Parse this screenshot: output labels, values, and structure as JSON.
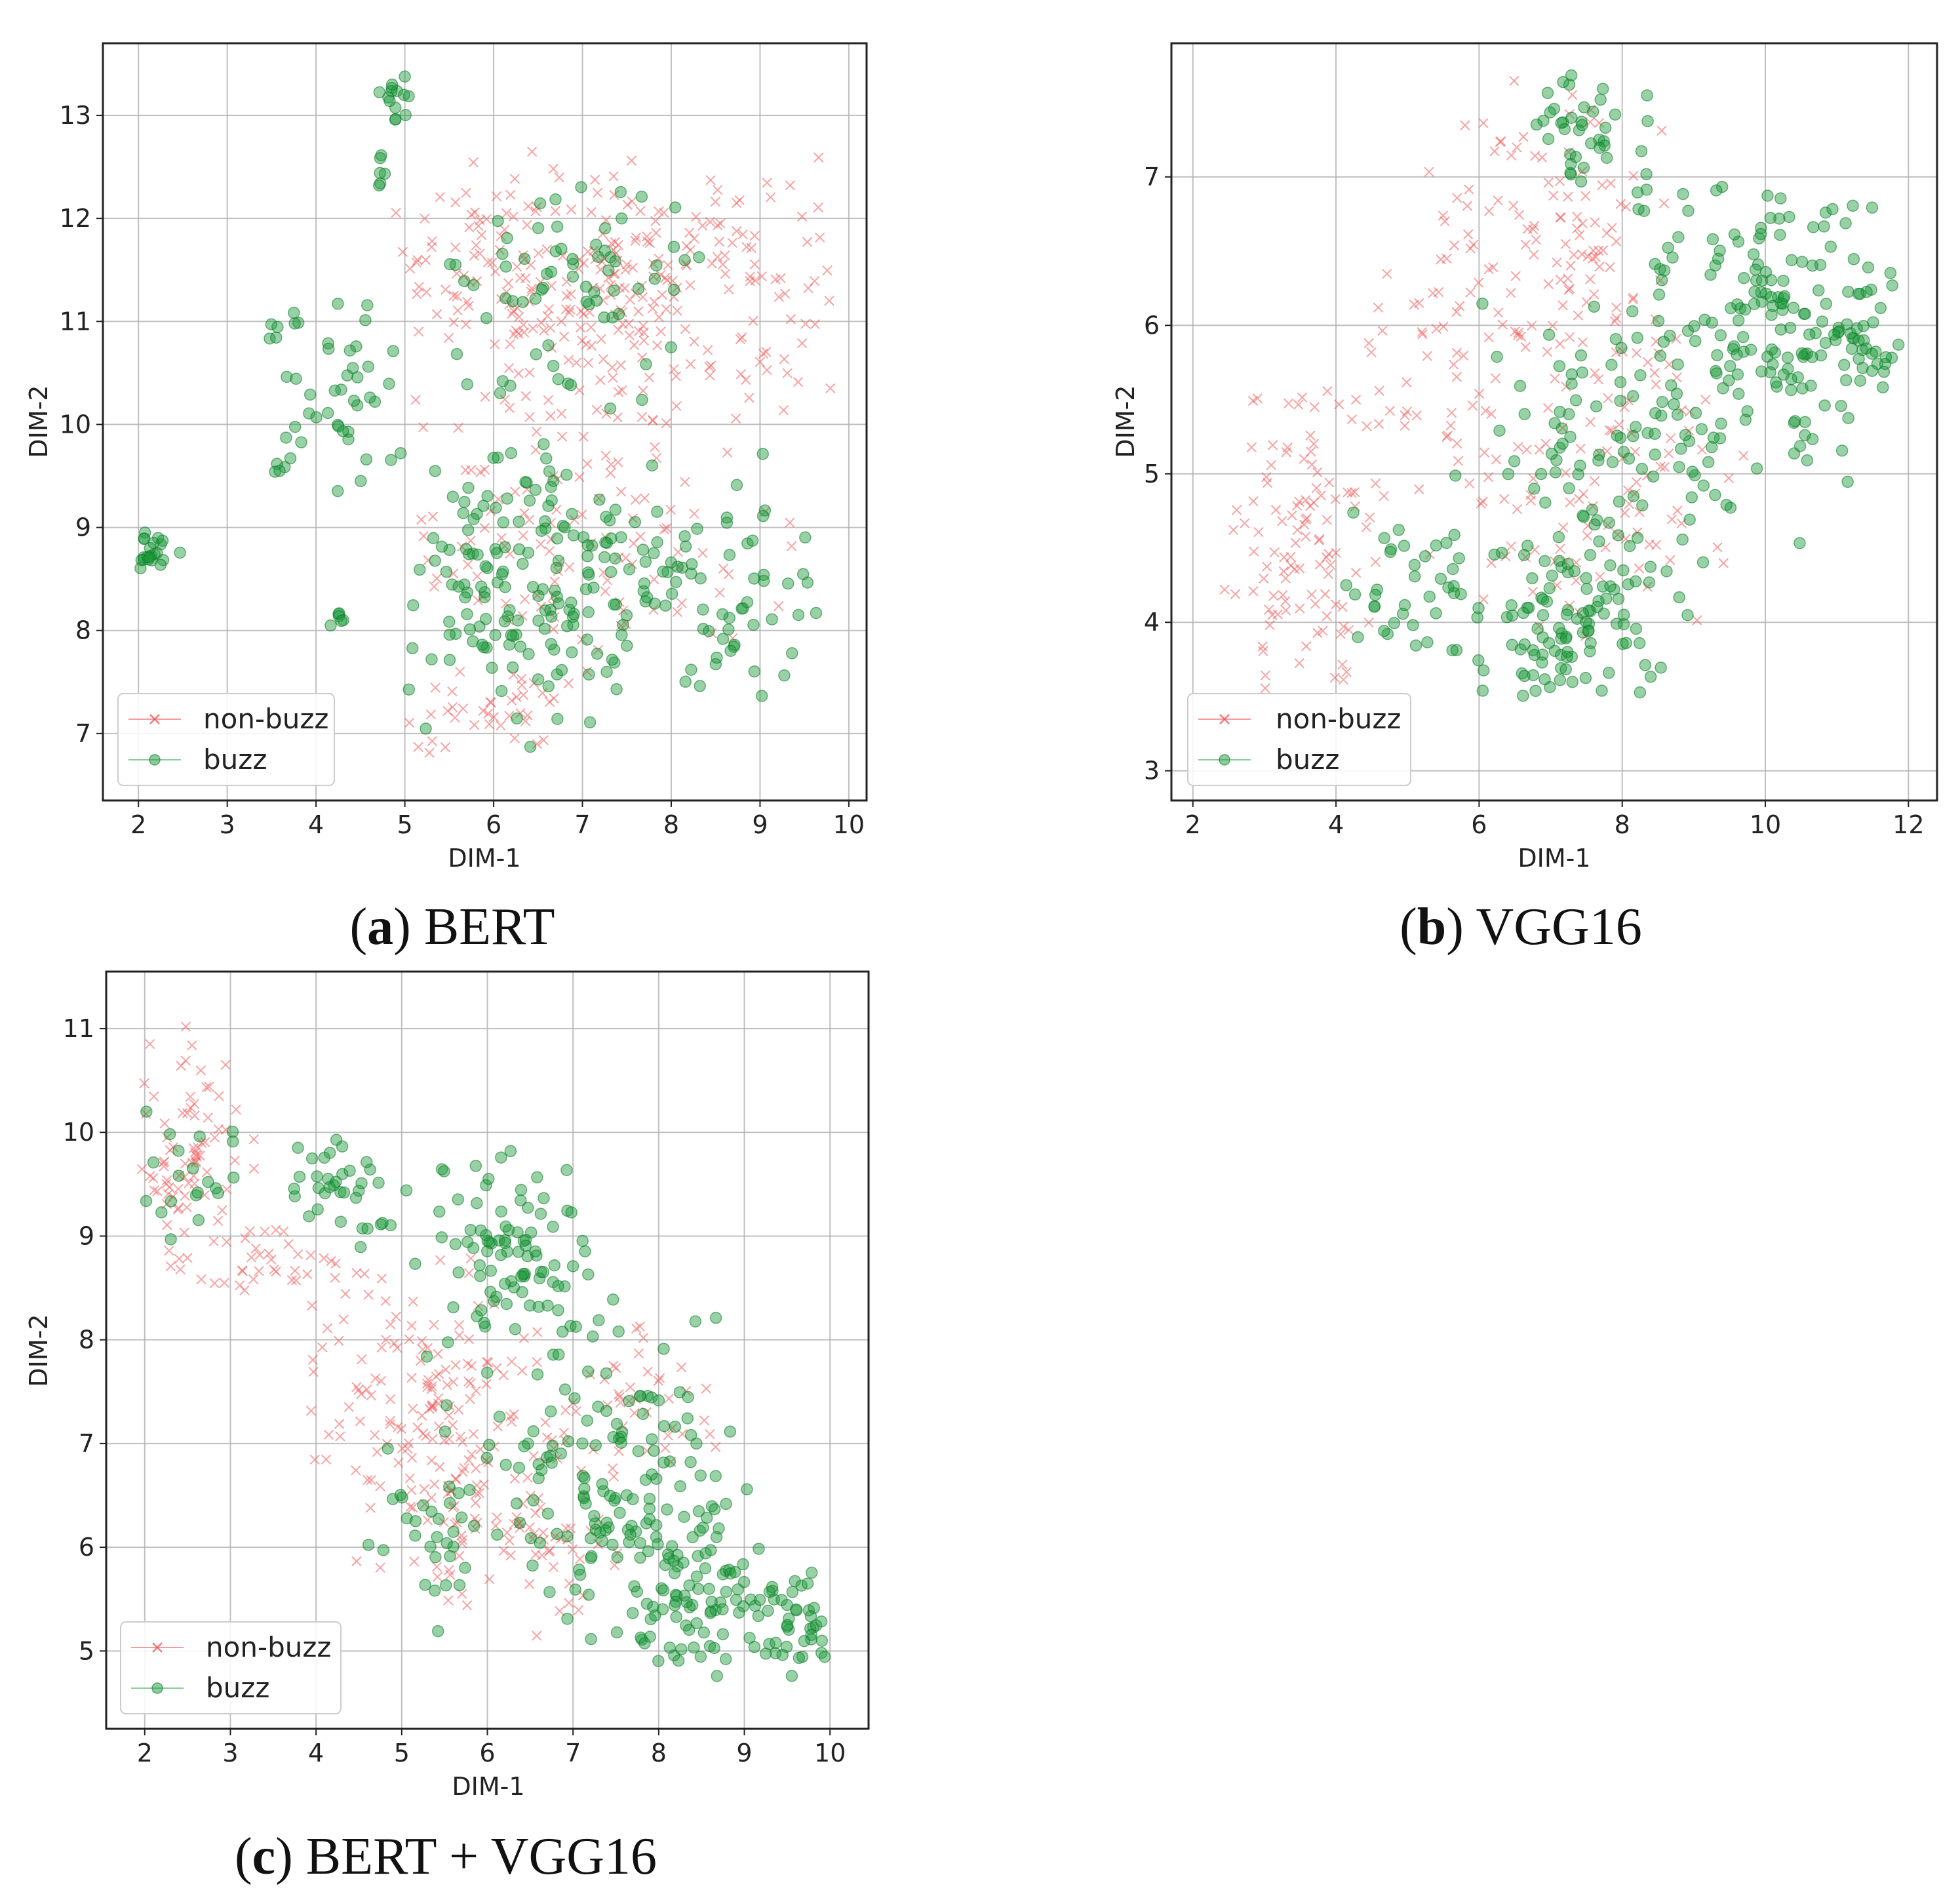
{
  "figure": {
    "colors": {
      "non_buzz": "#f25a5a",
      "buzz": "#1a9a3a",
      "grid": "#b0b0b0",
      "axes": "#222222"
    }
  },
  "chart_data": [
    {
      "id": "a",
      "type": "scatter",
      "caption": {
        "letter": "a",
        "text": "BERT"
      },
      "xlabel": "DIM-1",
      "ylabel": "DIM-2",
      "xlim": [
        1.6,
        10.2
      ],
      "ylim": [
        6.35,
        13.7
      ],
      "xticks": [
        "2",
        "3",
        "4",
        "5",
        "6",
        "7",
        "8",
        "9",
        "10"
      ],
      "yticks": [
        "7",
        "8",
        "9",
        "10",
        "11",
        "12",
        "13"
      ],
      "legend": {
        "position": "lower-left",
        "entries": [
          "non-buzz",
          "buzz"
        ]
      },
      "series": [
        {
          "name": "non-buzz",
          "marker": "x",
          "clusters": [
            {
              "cx": 7.6,
              "cy": 11.3,
              "sx": 1.2,
              "sy": 0.6,
              "n": 260,
              "xr": [
                5.1,
                9.8
              ],
              "yr": [
                10.0,
                12.6
              ]
            },
            {
              "cx": 7.0,
              "cy": 9.0,
              "sx": 1.1,
              "sy": 0.8,
              "n": 120,
              "xr": [
                5.0,
                9.5
              ],
              "yr": [
                7.8,
                10.3
              ]
            },
            {
              "cx": 5.9,
              "cy": 7.2,
              "sx": 0.6,
              "sy": 0.3,
              "n": 40,
              "xr": [
                5.0,
                7.4
              ],
              "yr": [
                6.7,
                7.8
              ]
            },
            {
              "cx": 5.8,
              "cy": 11.8,
              "sx": 0.5,
              "sy": 0.5,
              "n": 40,
              "xr": [
                4.9,
                6.8
              ],
              "yr": [
                11.0,
                12.8
              ]
            }
          ]
        },
        {
          "name": "buzz",
          "marker": "o",
          "clusters": [
            {
              "cx": 6.3,
              "cy": 8.6,
              "sx": 0.9,
              "sy": 0.7,
              "n": 160,
              "xr": [
                5.0,
                8.6
              ],
              "yr": [
                6.7,
                10.0
              ]
            },
            {
              "cx": 8.4,
              "cy": 8.3,
              "sx": 0.7,
              "sy": 0.6,
              "n": 70,
              "xr": [
                7.3,
                9.7
              ],
              "yr": [
                7.2,
                9.8
              ]
            },
            {
              "cx": 6.8,
              "cy": 11.2,
              "sx": 0.8,
              "sy": 0.6,
              "n": 70,
              "xr": [
                5.5,
                8.6
              ],
              "yr": [
                10.1,
                12.4
              ]
            },
            {
              "cx": 4.3,
              "cy": 10.2,
              "sx": 0.35,
              "sy": 0.6,
              "n": 40,
              "xr": [
                3.6,
                5.0
              ],
              "yr": [
                9.2,
                11.5
              ]
            },
            {
              "cx": 2.15,
              "cy": 8.75,
              "sx": 0.12,
              "sy": 0.1,
              "n": 22,
              "xr": [
                2.0,
                2.6
              ],
              "yr": [
                8.6,
                9.0
              ]
            },
            {
              "cx": 4.9,
              "cy": 13.2,
              "sx": 0.1,
              "sy": 0.15,
              "n": 14,
              "xr": [
                4.7,
                5.3
              ],
              "yr": [
                12.9,
                13.4
              ]
            },
            {
              "cx": 4.7,
              "cy": 12.4,
              "sx": 0.1,
              "sy": 0.15,
              "n": 6,
              "xr": [
                4.5,
                4.9
              ],
              "yr": [
                12.2,
                12.7
              ]
            },
            {
              "cx": 4.25,
              "cy": 8.1,
              "sx": 0.06,
              "sy": 0.06,
              "n": 6,
              "xr": [
                4.1,
                4.4
              ],
              "yr": [
                8.0,
                8.2
              ]
            },
            {
              "cx": 3.6,
              "cy": 9.55,
              "sx": 0.05,
              "sy": 0.05,
              "n": 4,
              "xr": [
                3.5,
                3.7
              ],
              "yr": [
                9.4,
                9.7
              ]
            },
            {
              "cx": 3.6,
              "cy": 10.9,
              "sx": 0.1,
              "sy": 0.1,
              "n": 6,
              "xr": [
                3.4,
                3.9
              ],
              "yr": [
                10.7,
                11.1
              ]
            }
          ]
        }
      ]
    },
    {
      "id": "b",
      "type": "scatter",
      "caption": {
        "letter": "b",
        "text": "VGG16"
      },
      "xlabel": "DIM-1",
      "ylabel": "DIM-2",
      "xlim": [
        1.7,
        12.4
      ],
      "ylim": [
        2.8,
        7.9
      ],
      "xticks": [
        "2",
        "4",
        "6",
        "8",
        "10",
        "12"
      ],
      "yticks": [
        "3",
        "4",
        "5",
        "6",
        "7"
      ],
      "legend": {
        "position": "lower-left",
        "entries": [
          "non-buzz",
          "buzz"
        ]
      },
      "series": [
        {
          "name": "non-buzz",
          "marker": "x",
          "clusters": [
            {
              "cx": 3.5,
              "cy": 4.6,
              "sx": 0.6,
              "sy": 0.6,
              "n": 110,
              "xr": [
                2.4,
                5.0
              ],
              "yr": [
                3.4,
                5.8
              ]
            },
            {
              "cx": 7.0,
              "cy": 6.6,
              "sx": 1.0,
              "sy": 0.5,
              "n": 110,
              "xr": [
                5.2,
                8.7
              ],
              "yr": [
                5.6,
                7.7
              ]
            },
            {
              "cx": 7.5,
              "cy": 5.0,
              "sx": 1.2,
              "sy": 0.6,
              "n": 110,
              "xr": [
                5.2,
                10.0
              ],
              "yr": [
                3.9,
                6.0
              ]
            },
            {
              "cx": 5.2,
              "cy": 5.6,
              "sx": 0.7,
              "sy": 0.4,
              "n": 40,
              "xr": [
                4.2,
                6.3
              ],
              "yr": [
                4.8,
                6.7
              ]
            }
          ]
        },
        {
          "name": "buzz",
          "marker": "o",
          "clusters": [
            {
              "cx": 9.8,
              "cy": 6.0,
              "sx": 1.0,
              "sy": 0.5,
              "n": 170,
              "xr": [
                8.2,
                11.9
              ],
              "yr": [
                4.5,
                7.0
              ]
            },
            {
              "cx": 7.2,
              "cy": 4.0,
              "sx": 0.9,
              "sy": 0.3,
              "n": 110,
              "xr": [
                5.5,
                9.0
              ],
              "yr": [
                3.5,
                4.8
              ]
            },
            {
              "cx": 7.8,
              "cy": 5.2,
              "sx": 0.9,
              "sy": 0.5,
              "n": 90,
              "xr": [
                6.0,
                9.6
              ],
              "yr": [
                4.3,
                6.3
              ]
            },
            {
              "cx": 7.6,
              "cy": 7.3,
              "sx": 0.5,
              "sy": 0.25,
              "n": 40,
              "xr": [
                6.8,
                8.5
              ],
              "yr": [
                6.8,
                7.7
              ]
            },
            {
              "cx": 4.9,
              "cy": 4.2,
              "sx": 0.5,
              "sy": 0.35,
              "n": 35,
              "xr": [
                3.9,
                5.7
              ],
              "yr": [
                3.6,
                5.2
              ]
            },
            {
              "cx": 11.4,
              "cy": 5.9,
              "sx": 0.3,
              "sy": 0.2,
              "n": 25,
              "xr": [
                10.9,
                11.9
              ],
              "yr": [
                5.6,
                6.5
              ]
            }
          ]
        }
      ]
    },
    {
      "id": "c",
      "type": "scatter",
      "caption": {
        "letter": "c",
        "text": "BERT + VGG16"
      },
      "xlabel": "DIM-1",
      "ylabel": "DIM-2",
      "xlim": [
        1.55,
        10.45
      ],
      "ylim": [
        4.25,
        11.55
      ],
      "xticks": [
        "2",
        "3",
        "4",
        "5",
        "6",
        "7",
        "8",
        "9",
        "10"
      ],
      "yticks": [
        "5",
        "6",
        "7",
        "8",
        "9",
        "10",
        "11"
      ],
      "legend": {
        "position": "lower-left",
        "entries": [
          "non-buzz",
          "buzz"
        ]
      },
      "series": [
        {
          "name": "non-buzz",
          "marker": "x",
          "clusters": [
            {
              "cx": 2.5,
              "cy": 9.8,
              "sx": 0.35,
              "sy": 0.6,
              "n": 80,
              "xr": [
                1.9,
                3.6
              ],
              "yr": [
                8.5,
                11.2
              ]
            },
            {
              "cx": 3.4,
              "cy": 8.7,
              "sx": 0.4,
              "sy": 0.2,
              "n": 30,
              "xr": [
                2.6,
                4.2
              ],
              "yr": [
                8.2,
                9.1
              ]
            },
            {
              "cx": 5.2,
              "cy": 7.4,
              "sx": 0.7,
              "sy": 0.7,
              "n": 150,
              "xr": [
                3.9,
                6.8
              ],
              "yr": [
                5.8,
                9.0
              ]
            },
            {
              "cx": 6.3,
              "cy": 6.2,
              "sx": 0.7,
              "sy": 0.5,
              "n": 90,
              "xr": [
                5.0,
                7.6
              ],
              "yr": [
                5.0,
                7.4
              ]
            },
            {
              "cx": 7.6,
              "cy": 7.6,
              "sx": 0.6,
              "sy": 0.5,
              "n": 40,
              "xr": [
                6.8,
                8.7
              ],
              "yr": [
                6.6,
                8.2
              ]
            }
          ]
        },
        {
          "name": "buzz",
          "marker": "o",
          "clusters": [
            {
              "cx": 6.2,
              "cy": 8.8,
              "sx": 0.6,
              "sy": 0.5,
              "n": 90,
              "xr": [
                5.0,
                7.2
              ],
              "yr": [
                7.8,
                9.9
              ]
            },
            {
              "cx": 7.3,
              "cy": 6.6,
              "sx": 0.8,
              "sy": 0.8,
              "n": 150,
              "xr": [
                5.2,
                8.9
              ],
              "yr": [
                4.9,
                8.5
              ]
            },
            {
              "cx": 8.6,
              "cy": 5.5,
              "sx": 0.6,
              "sy": 0.45,
              "n": 80,
              "xr": [
                7.6,
                9.5
              ],
              "yr": [
                4.7,
                6.8
              ]
            },
            {
              "cx": 9.6,
              "cy": 5.3,
              "sx": 0.3,
              "sy": 0.35,
              "n": 40,
              "xr": [
                9.1,
                10.0
              ],
              "yr": [
                4.6,
                6.2
              ]
            },
            {
              "cx": 4.3,
              "cy": 9.4,
              "sx": 0.4,
              "sy": 0.35,
              "n": 35,
              "xr": [
                3.4,
                5.2
              ],
              "yr": [
                8.8,
                10.0
              ]
            },
            {
              "cx": 2.6,
              "cy": 9.8,
              "sx": 0.3,
              "sy": 0.4,
              "n": 20,
              "xr": [
                2.0,
                3.3
              ],
              "yr": [
                8.9,
                10.4
              ]
            },
            {
              "cx": 5.3,
              "cy": 6.3,
              "sx": 0.5,
              "sy": 0.4,
              "n": 30,
              "xr": [
                4.6,
                6.2
              ],
              "yr": [
                5.5,
                7.2
              ]
            }
          ]
        }
      ]
    }
  ]
}
